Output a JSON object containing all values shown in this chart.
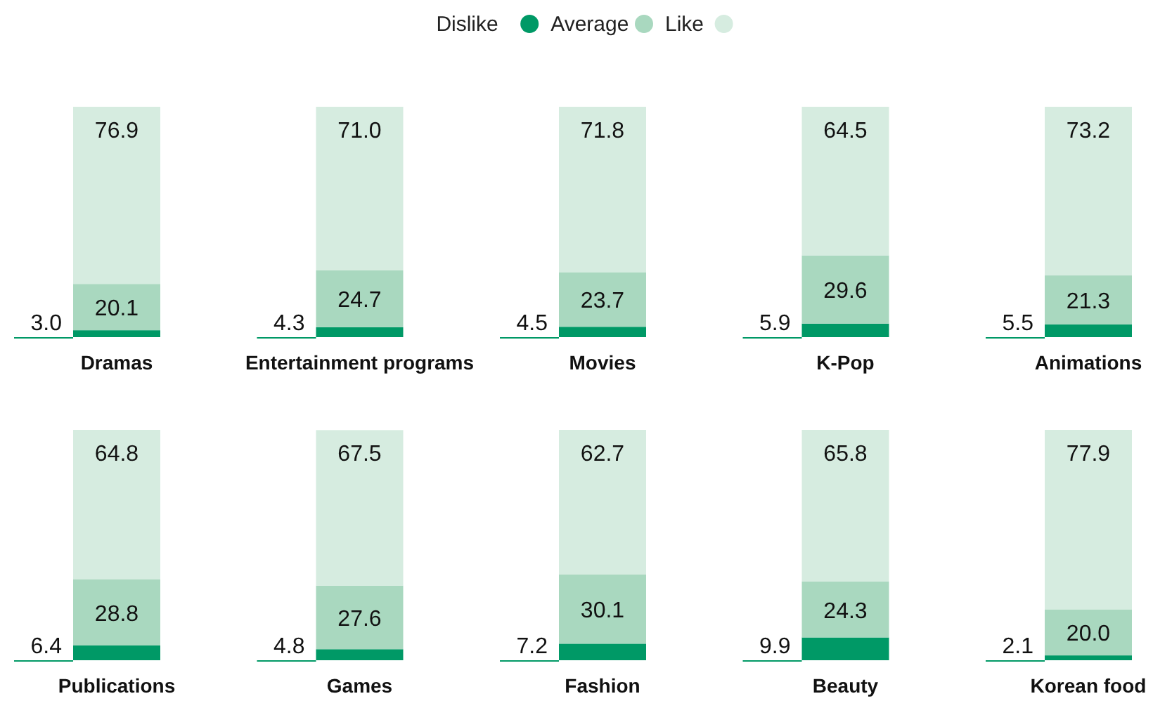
{
  "chart_data": [
    {
      "type": "bar",
      "stacked": true,
      "legend": "top",
      "categories": [
        "Dramas",
        "Entertainment programs",
        "Movies",
        "K-Pop",
        "Animations"
      ],
      "series": [
        {
          "name": "Dislike",
          "color": "#009966",
          "values": [
            3.0,
            4.3,
            4.5,
            5.9,
            5.5
          ],
          "value_labels": [
            "3.0",
            "4.3",
            "4.5",
            "5.9",
            "5.5"
          ]
        },
        {
          "name": "Average",
          "color": "#a9d8bf",
          "values": [
            20.1,
            24.7,
            23.7,
            29.6,
            21.3
          ],
          "value_labels": [
            "20.1",
            "24.7",
            "23.7",
            "29.6",
            "21.3"
          ]
        },
        {
          "name": "Like",
          "color": "#d6ece0",
          "values": [
            76.9,
            71.0,
            71.8,
            64.5,
            73.2
          ],
          "value_labels": [
            "76.9",
            "71.0",
            "71.8",
            "64.5",
            "73.2"
          ]
        }
      ]
    },
    {
      "type": "bar",
      "stacked": true,
      "categories": [
        "Publications",
        "Games",
        "Fashion",
        "Beauty",
        "Korean food"
      ],
      "series": [
        {
          "color": "#009966",
          "values": [
            6.4,
            4.8,
            7.2,
            9.9,
            2.1
          ],
          "value_labels": [
            "6.4",
            "4.8",
            "7.2",
            "9.9",
            "2.1"
          ]
        },
        {
          "color": "#a9d8bf",
          "values": [
            28.8,
            27.6,
            30.1,
            24.3,
            20.0
          ],
          "value_labels": [
            "28.8",
            "27.6",
            "30.1",
            "24.3",
            "20.0"
          ]
        },
        {
          "color": "#d6ece0",
          "values": [
            64.8,
            67.5,
            62.7,
            65.8,
            77.9
          ],
          "value_labels": [
            "64.8",
            "67.5",
            "62.7",
            "65.8",
            "77.9"
          ]
        }
      ]
    }
  ]
}
